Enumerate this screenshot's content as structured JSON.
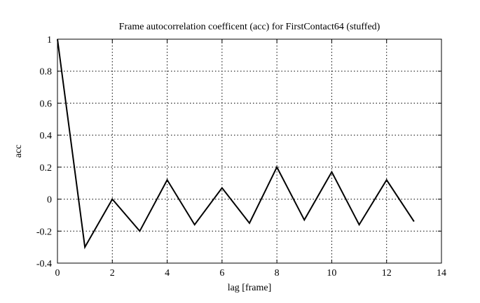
{
  "chart_data": {
    "type": "line",
    "title": "Frame autocorrelation coefficent (acc) for FirstContact64 (stuffed)",
    "x_label": "lag [frame]",
    "y_label": "acc",
    "x": [
      0,
      1,
      2,
      3,
      4,
      5,
      6,
      7,
      8,
      9,
      10,
      11,
      12,
      13
    ],
    "series": [
      {
        "name": "acc",
        "color": "#000000",
        "values": [
          1,
          -0.3,
          0,
          -0.2,
          0.12,
          -0.16,
          0.07,
          -0.15,
          0.2,
          -0.13,
          0.17,
          -0.16,
          0.12,
          -0.14
        ]
      }
    ],
    "xlim": [
      0,
      14
    ],
    "xticks": [
      0,
      2,
      4,
      6,
      8,
      10,
      12,
      14
    ],
    "ylim": [
      -0.4,
      1
    ],
    "yticks": [
      -0.4,
      -0.2,
      0,
      0.2,
      0.4,
      0.6,
      0.8,
      1
    ],
    "grid": true
  }
}
